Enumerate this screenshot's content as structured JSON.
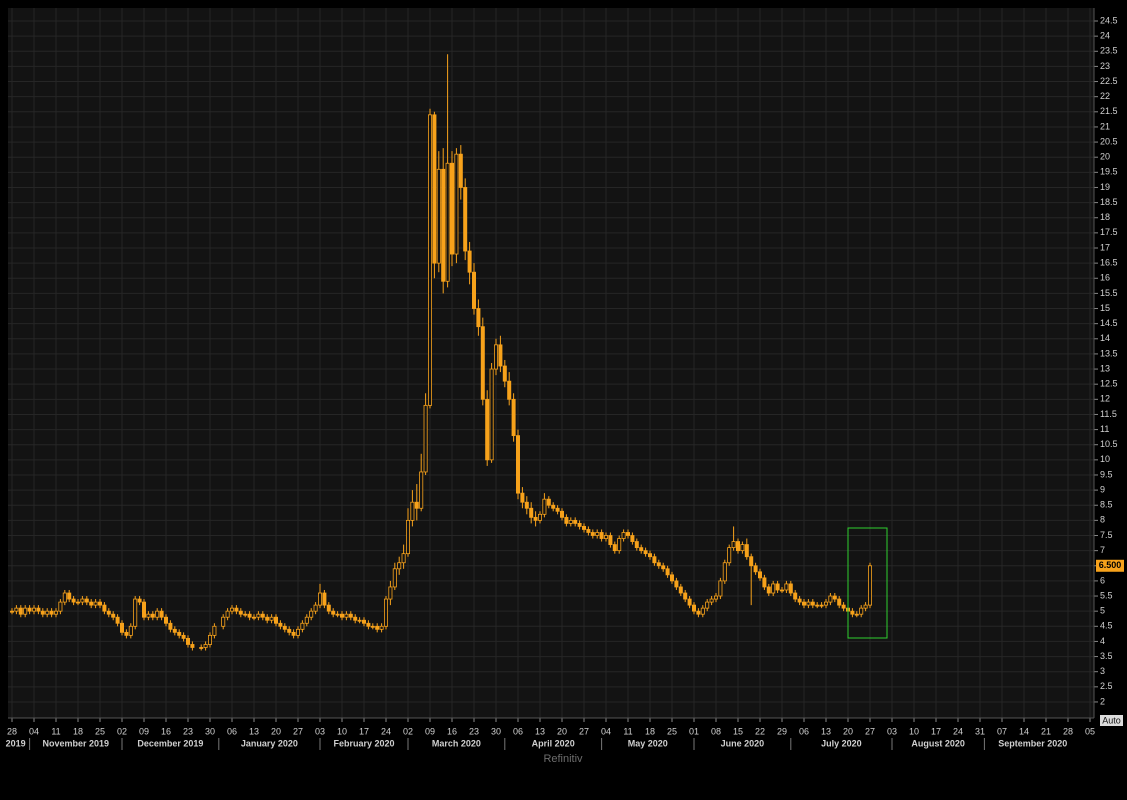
{
  "chart_data": {
    "type": "candlestick",
    "x": [
      "2019-10-28",
      "2019-10-29",
      "2019-10-30",
      "2019-10-31",
      "2019-11-01",
      "2019-11-04",
      "2019-11-05",
      "2019-11-06",
      "2019-11-07",
      "2019-11-08",
      "2019-11-11",
      "2019-11-12",
      "2019-11-13",
      "2019-11-14",
      "2019-11-15",
      "2019-11-18",
      "2019-11-19",
      "2019-11-20",
      "2019-11-21",
      "2019-11-22",
      "2019-11-25",
      "2019-11-26",
      "2019-11-27",
      "2019-11-28",
      "2019-11-29",
      "2019-12-02",
      "2019-12-03",
      "2019-12-04",
      "2019-12-05",
      "2019-12-06",
      "2019-12-09",
      "2019-12-10",
      "2019-12-11",
      "2019-12-12",
      "2019-12-13",
      "2019-12-16",
      "2019-12-17",
      "2019-12-18",
      "2019-12-19",
      "2019-12-20",
      "2019-12-23",
      "2019-12-24",
      "2019-12-26",
      "2019-12-27",
      "2019-12-30",
      "2019-12-31",
      "2020-01-02",
      "2020-01-03",
      "2020-01-06",
      "2020-01-07",
      "2020-01-08",
      "2020-01-09",
      "2020-01-10",
      "2020-01-13",
      "2020-01-14",
      "2020-01-15",
      "2020-01-16",
      "2020-01-17",
      "2020-01-20",
      "2020-01-21",
      "2020-01-22",
      "2020-01-23",
      "2020-01-24",
      "2020-01-27",
      "2020-01-28",
      "2020-01-29",
      "2020-01-30",
      "2020-01-31",
      "2020-02-03",
      "2020-02-04",
      "2020-02-05",
      "2020-02-06",
      "2020-02-07",
      "2020-02-10",
      "2020-02-11",
      "2020-02-12",
      "2020-02-13",
      "2020-02-14",
      "2020-02-17",
      "2020-02-18",
      "2020-02-19",
      "2020-02-20",
      "2020-02-21",
      "2020-02-24",
      "2020-02-25",
      "2020-02-26",
      "2020-02-27",
      "2020-02-28",
      "2020-03-02",
      "2020-03-03",
      "2020-03-04",
      "2020-03-05",
      "2020-03-06",
      "2020-03-09",
      "2020-03-10",
      "2020-03-11",
      "2020-03-12",
      "2020-03-13",
      "2020-03-16",
      "2020-03-17",
      "2020-03-18",
      "2020-03-19",
      "2020-03-20",
      "2020-03-23",
      "2020-03-24",
      "2020-03-25",
      "2020-03-26",
      "2020-03-27",
      "2020-03-30",
      "2020-03-31",
      "2020-04-01",
      "2020-04-02",
      "2020-04-03",
      "2020-04-06",
      "2020-04-07",
      "2020-04-08",
      "2020-04-09",
      "2020-04-10",
      "2020-04-13",
      "2020-04-14",
      "2020-04-15",
      "2020-04-16",
      "2020-04-17",
      "2020-04-20",
      "2020-04-21",
      "2020-04-22",
      "2020-04-23",
      "2020-04-24",
      "2020-04-27",
      "2020-04-28",
      "2020-04-29",
      "2020-04-30",
      "2020-05-01",
      "2020-05-04",
      "2020-05-05",
      "2020-05-06",
      "2020-05-07",
      "2020-05-08",
      "2020-05-11",
      "2020-05-12",
      "2020-05-13",
      "2020-05-14",
      "2020-05-15",
      "2020-05-18",
      "2020-05-19",
      "2020-05-20",
      "2020-05-21",
      "2020-05-22",
      "2020-05-25",
      "2020-05-26",
      "2020-05-27",
      "2020-05-28",
      "2020-05-29",
      "2020-06-01",
      "2020-06-02",
      "2020-06-03",
      "2020-06-04",
      "2020-06-05",
      "2020-06-08",
      "2020-06-09",
      "2020-06-10",
      "2020-06-11",
      "2020-06-12",
      "2020-06-15",
      "2020-06-16",
      "2020-06-17",
      "2020-06-18",
      "2020-06-19",
      "2020-06-22",
      "2020-06-23",
      "2020-06-24",
      "2020-06-25",
      "2020-06-26",
      "2020-06-29",
      "2020-06-30",
      "2020-07-01",
      "2020-07-02",
      "2020-07-03",
      "2020-07-06",
      "2020-07-07",
      "2020-07-08",
      "2020-07-09",
      "2020-07-10",
      "2020-07-13",
      "2020-07-14",
      "2020-07-15",
      "2020-07-16",
      "2020-07-17",
      "2020-07-20",
      "2020-07-21",
      "2020-07-22",
      "2020-07-23",
      "2020-07-24",
      "2020-07-27"
    ],
    "open": [
      5.0,
      5.0,
      5.1,
      4.9,
      5.1,
      5.0,
      5.1,
      5.0,
      4.9,
      5.0,
      4.9,
      5.0,
      5.3,
      5.6,
      5.4,
      5.3,
      5.3,
      5.4,
      5.3,
      5.2,
      5.3,
      5.2,
      5.0,
      4.9,
      4.8,
      4.6,
      4.3,
      4.2,
      4.5,
      5.4,
      5.3,
      4.8,
      4.9,
      4.8,
      5.0,
      4.8,
      4.6,
      4.4,
      4.3,
      4.2,
      4.1,
      3.9,
      3.8,
      3.8,
      3.9,
      4.2,
      4.5,
      4.8,
      5.0,
      5.1,
      5.0,
      4.9,
      4.9,
      4.8,
      4.8,
      4.9,
      4.8,
      4.7,
      4.8,
      4.6,
      4.5,
      4.4,
      4.3,
      4.2,
      4.4,
      4.6,
      4.8,
      5.0,
      5.2,
      5.6,
      5.2,
      5.0,
      4.9,
      4.9,
      4.8,
      4.9,
      4.8,
      4.7,
      4.7,
      4.6,
      4.5,
      4.5,
      4.4,
      4.5,
      5.4,
      5.8,
      6.4,
      6.6,
      6.9,
      8.0,
      8.6,
      8.4,
      9.6,
      11.8,
      21.4,
      16.5,
      19.6,
      15.9,
      19.8,
      16.8,
      20.1,
      19.0,
      16.9,
      16.2,
      15.0,
      14.4,
      12.0,
      10.0,
      13.0,
      13.8,
      13.1,
      12.6,
      12.0,
      10.8,
      8.9,
      8.6,
      8.4,
      8.1,
      8.0,
      8.2,
      8.7,
      8.5,
      8.4,
      8.3,
      8.1,
      7.9,
      8.0,
      7.9,
      7.8,
      7.7,
      7.6,
      7.5,
      7.6,
      7.4,
      7.5,
      7.2,
      7.0,
      7.4,
      7.6,
      7.5,
      7.3,
      7.1,
      7.0,
      6.9,
      6.8,
      6.6,
      6.5,
      6.4,
      6.2,
      6.0,
      5.8,
      5.6,
      5.4,
      5.2,
      5.0,
      4.9,
      5.1,
      5.3,
      5.4,
      5.5,
      6.0,
      6.6,
      7.1,
      7.3,
      7.0,
      7.2,
      6.8,
      6.5,
      6.3,
      6.1,
      5.8,
      5.6,
      5.9,
      5.7,
      5.7,
      5.9,
      5.6,
      5.4,
      5.3,
      5.2,
      5.3,
      5.2,
      5.2,
      5.2,
      5.3,
      5.5,
      5.4,
      5.2,
      5.1,
      5.0,
      4.9,
      4.9,
      5.1,
      5.2
    ],
    "high": [
      5.1,
      5.2,
      5.2,
      5.2,
      5.2,
      5.2,
      5.2,
      5.1,
      5.1,
      5.1,
      5.1,
      5.4,
      5.7,
      5.7,
      5.5,
      5.4,
      5.5,
      5.5,
      5.4,
      5.4,
      5.4,
      5.3,
      5.1,
      5.0,
      4.9,
      4.7,
      4.4,
      4.6,
      5.5,
      5.5,
      5.4,
      5.0,
      5.0,
      5.1,
      5.1,
      4.9,
      4.7,
      4.5,
      4.4,
      4.3,
      4.2,
      4.0,
      3.9,
      4.0,
      4.3,
      4.6,
      4.9,
      5.1,
      5.2,
      5.2,
      5.1,
      5.0,
      5.0,
      4.9,
      5.0,
      5.0,
      4.9,
      4.9,
      4.9,
      4.7,
      4.6,
      4.5,
      4.4,
      4.5,
      4.7,
      4.9,
      5.1,
      5.3,
      5.9,
      5.7,
      5.3,
      5.1,
      5.0,
      5.0,
      5.0,
      5.0,
      4.9,
      4.8,
      4.8,
      4.7,
      4.6,
      4.6,
      4.6,
      5.5,
      6.0,
      6.6,
      6.8,
      7.2,
      8.4,
      9.0,
      9.2,
      10.2,
      12.2,
      21.6,
      21.5,
      20.2,
      20.3,
      23.4,
      20.2,
      20.3,
      20.4,
      19.3,
      17.2,
      16.5,
      15.3,
      14.7,
      12.3,
      13.2,
      14.0,
      14.1,
      13.3,
      12.9,
      12.2,
      11.0,
      9.1,
      8.8,
      8.6,
      8.3,
      8.3,
      8.9,
      8.8,
      8.6,
      8.5,
      8.4,
      8.2,
      8.1,
      8.1,
      8.0,
      7.9,
      7.8,
      7.7,
      7.7,
      7.7,
      7.6,
      7.6,
      7.3,
      7.5,
      7.7,
      7.7,
      7.6,
      7.4,
      7.2,
      7.1,
      7.0,
      6.9,
      6.7,
      6.6,
      6.5,
      6.3,
      6.1,
      5.9,
      5.7,
      5.5,
      5.3,
      5.1,
      5.2,
      5.4,
      5.5,
      5.6,
      6.1,
      6.7,
      7.2,
      7.8,
      7.4,
      7.3,
      7.4,
      6.9,
      6.6,
      6.4,
      6.2,
      5.9,
      6.0,
      6.0,
      5.8,
      6.0,
      6.0,
      5.7,
      5.5,
      5.4,
      5.4,
      5.4,
      5.3,
      5.3,
      5.4,
      5.6,
      5.6,
      5.5,
      5.3,
      5.2,
      5.1,
      5.0,
      5.2,
      5.3,
      6.6
    ],
    "low": [
      4.9,
      4.9,
      4.8,
      4.8,
      4.9,
      4.9,
      4.9,
      4.8,
      4.8,
      4.8,
      4.8,
      4.9,
      5.2,
      5.3,
      5.2,
      5.2,
      5.2,
      5.2,
      5.1,
      5.1,
      5.1,
      4.9,
      4.8,
      4.7,
      4.5,
      4.2,
      4.1,
      4.1,
      4.4,
      5.2,
      4.7,
      4.7,
      4.7,
      4.7,
      4.7,
      4.5,
      4.3,
      4.2,
      4.1,
      4.0,
      3.8,
      3.7,
      3.7,
      3.7,
      3.8,
      4.1,
      4.4,
      4.7,
      4.9,
      4.9,
      4.8,
      4.8,
      4.7,
      4.7,
      4.7,
      4.7,
      4.6,
      4.6,
      4.5,
      4.4,
      4.3,
      4.2,
      4.1,
      4.1,
      4.3,
      4.5,
      4.7,
      4.9,
      5.1,
      5.1,
      4.9,
      4.8,
      4.8,
      4.7,
      4.7,
      4.7,
      4.6,
      4.6,
      4.5,
      4.4,
      4.4,
      4.3,
      4.3,
      4.4,
      5.2,
      5.7,
      6.2,
      6.4,
      6.8,
      7.8,
      8.0,
      8.3,
      9.5,
      11.7,
      16.0,
      16.2,
      15.5,
      15.7,
      16.4,
      16.5,
      18.6,
      16.6,
      15.8,
      14.8,
      14.1,
      11.8,
      9.8,
      9.9,
      12.8,
      12.9,
      12.4,
      11.8,
      10.6,
      8.7,
      8.4,
      8.2,
      7.9,
      7.8,
      7.9,
      8.1,
      8.4,
      8.3,
      8.2,
      8.0,
      7.8,
      7.8,
      7.8,
      7.7,
      7.6,
      7.5,
      7.4,
      7.4,
      7.3,
      7.3,
      7.1,
      6.9,
      6.9,
      7.3,
      7.4,
      7.2,
      7.0,
      6.9,
      6.8,
      6.7,
      6.5,
      6.4,
      6.3,
      6.1,
      5.9,
      5.7,
      5.5,
      5.3,
      5.1,
      4.9,
      4.8,
      4.8,
      5.0,
      5.2,
      5.3,
      5.4,
      5.9,
      6.5,
      7.0,
      6.9,
      6.9,
      6.7,
      5.2,
      6.2,
      6.0,
      5.7,
      5.5,
      5.5,
      5.6,
      5.6,
      5.6,
      5.5,
      5.3,
      5.2,
      5.1,
      5.1,
      5.1,
      5.1,
      5.1,
      5.1,
      5.2,
      5.3,
      5.1,
      5.0,
      4.9,
      4.8,
      4.8,
      4.8,
      5.0,
      5.1
    ],
    "close": [
      5.0,
      5.1,
      4.9,
      5.1,
      5.0,
      5.1,
      5.0,
      4.9,
      5.0,
      4.9,
      5.0,
      5.3,
      5.6,
      5.4,
      5.3,
      5.3,
      5.4,
      5.3,
      5.2,
      5.3,
      5.2,
      5.0,
      4.9,
      4.8,
      4.6,
      4.3,
      4.2,
      4.5,
      5.4,
      5.3,
      4.8,
      4.9,
      4.8,
      5.0,
      4.8,
      4.6,
      4.4,
      4.3,
      4.2,
      4.1,
      3.9,
      3.8,
      3.8,
      3.9,
      4.2,
      4.5,
      4.8,
      5.0,
      5.1,
      5.0,
      4.9,
      4.9,
      4.8,
      4.8,
      4.9,
      4.8,
      4.7,
      4.8,
      4.6,
      4.5,
      4.4,
      4.3,
      4.2,
      4.4,
      4.6,
      4.8,
      5.0,
      5.2,
      5.6,
      5.2,
      5.0,
      4.9,
      4.9,
      4.8,
      4.9,
      4.8,
      4.7,
      4.7,
      4.6,
      4.5,
      4.5,
      4.4,
      4.5,
      5.4,
      5.8,
      6.4,
      6.6,
      6.9,
      8.0,
      8.6,
      8.4,
      9.6,
      11.8,
      21.4,
      16.5,
      19.6,
      15.9,
      19.8,
      16.8,
      20.1,
      19.0,
      16.9,
      16.2,
      15.0,
      14.4,
      12.0,
      10.0,
      13.0,
      13.8,
      13.1,
      12.6,
      12.0,
      10.8,
      8.9,
      8.6,
      8.4,
      8.1,
      8.0,
      8.2,
      8.7,
      8.5,
      8.4,
      8.3,
      8.1,
      7.9,
      8.0,
      7.9,
      7.8,
      7.7,
      7.6,
      7.5,
      7.6,
      7.4,
      7.5,
      7.2,
      7.0,
      7.4,
      7.6,
      7.5,
      7.3,
      7.1,
      7.0,
      6.9,
      6.8,
      6.6,
      6.5,
      6.4,
      6.2,
      6.0,
      5.8,
      5.6,
      5.4,
      5.2,
      5.0,
      4.9,
      5.1,
      5.3,
      5.4,
      5.5,
      6.0,
      6.6,
      7.1,
      7.3,
      7.0,
      7.2,
      6.8,
      6.5,
      6.3,
      6.1,
      5.8,
      5.6,
      5.9,
      5.7,
      5.7,
      5.9,
      5.6,
      5.4,
      5.3,
      5.2,
      5.3,
      5.2,
      5.2,
      5.2,
      5.3,
      5.5,
      5.4,
      5.2,
      5.1,
      5.0,
      4.9,
      4.9,
      5.1,
      5.2,
      6.5
    ],
    "color": "#f7a21b",
    "ylim": [
      1.47,
      24.93
    ],
    "yticks": [
      2,
      2.5,
      3,
      3.5,
      4,
      4.5,
      5,
      5.5,
      6,
      6.5,
      7,
      7.5,
      8,
      8.5,
      9,
      9.5,
      10,
      10.5,
      11,
      11.5,
      12,
      12.5,
      13,
      13.5,
      14,
      14.5,
      15,
      15.5,
      16,
      16.5,
      17,
      17.5,
      18,
      18.5,
      19,
      19.5,
      20,
      20.5,
      21,
      21.5,
      22,
      22.5,
      23,
      23.5,
      24,
      24.5
    ],
    "xticks": [
      {
        "value": "2019-10-28",
        "label": "28"
      },
      {
        "value": "2019-11-04",
        "label": "04"
      },
      {
        "value": "2019-11-11",
        "label": "11"
      },
      {
        "value": "2019-11-18",
        "label": "18"
      },
      {
        "value": "2019-11-25",
        "label": "25"
      },
      {
        "value": "2019-12-02",
        "label": "02"
      },
      {
        "value": "2019-12-09",
        "label": "09"
      },
      {
        "value": "2019-12-16",
        "label": "16"
      },
      {
        "value": "2019-12-23",
        "label": "23"
      },
      {
        "value": "2019-12-30",
        "label": "30"
      },
      {
        "value": "2020-01-06",
        "label": "06"
      },
      {
        "value": "2020-01-13",
        "label": "13"
      },
      {
        "value": "2020-01-20",
        "label": "20"
      },
      {
        "value": "2020-01-27",
        "label": "27"
      },
      {
        "value": "2020-02-03",
        "label": "03"
      },
      {
        "value": "2020-02-10",
        "label": "10"
      },
      {
        "value": "2020-02-17",
        "label": "17"
      },
      {
        "value": "2020-02-24",
        "label": "24"
      },
      {
        "value": "2020-03-02",
        "label": "02"
      },
      {
        "value": "2020-03-09",
        "label": "09"
      },
      {
        "value": "2020-03-16",
        "label": "16"
      },
      {
        "value": "2020-03-23",
        "label": "23"
      },
      {
        "value": "2020-03-30",
        "label": "30"
      },
      {
        "value": "2020-04-06",
        "label": "06"
      },
      {
        "value": "2020-04-13",
        "label": "13"
      },
      {
        "value": "2020-04-20",
        "label": "20"
      },
      {
        "value": "2020-04-27",
        "label": "27"
      },
      {
        "value": "2020-05-04",
        "label": "04"
      },
      {
        "value": "2020-05-11",
        "label": "11"
      },
      {
        "value": "2020-05-18",
        "label": "18"
      },
      {
        "value": "2020-05-25",
        "label": "25"
      },
      {
        "value": "2020-06-01",
        "label": "01"
      },
      {
        "value": "2020-06-08",
        "label": "08"
      },
      {
        "value": "2020-06-15",
        "label": "15"
      },
      {
        "value": "2020-06-22",
        "label": "22"
      },
      {
        "value": "2020-06-29",
        "label": "29"
      },
      {
        "value": "2020-07-06",
        "label": "06"
      },
      {
        "value": "2020-07-13",
        "label": "13"
      },
      {
        "value": "2020-07-20",
        "label": "20"
      },
      {
        "value": "2020-07-27",
        "label": "27"
      },
      {
        "value": "2020-08-03",
        "label": "03"
      },
      {
        "value": "2020-08-10",
        "label": "10"
      },
      {
        "value": "2020-08-17",
        "label": "17"
      },
      {
        "value": "2020-08-24",
        "label": "24"
      },
      {
        "value": "2020-08-31",
        "label": "31"
      },
      {
        "value": "2020-09-07",
        "label": "07"
      },
      {
        "value": "2020-09-14",
        "label": "14"
      },
      {
        "value": "2020-09-21",
        "label": "21"
      },
      {
        "value": "2020-09-28",
        "label": "28"
      },
      {
        "value": "2020-10-05",
        "label": "05"
      }
    ],
    "months": [
      {
        "value": "2019-10-01",
        "label": "2019"
      },
      {
        "value": "2019-11-01",
        "label": "November 2019"
      },
      {
        "value": "2019-12-01",
        "label": "December 2019"
      },
      {
        "value": "2020-01-01",
        "label": "January 2020"
      },
      {
        "value": "2020-02-01",
        "label": "February 2020"
      },
      {
        "value": "2020-03-01",
        "label": "March 2020"
      },
      {
        "value": "2020-04-01",
        "label": "April 2020"
      },
      {
        "value": "2020-05-01",
        "label": "May 2020"
      },
      {
        "value": "2020-06-01",
        "label": "June 2020"
      },
      {
        "value": "2020-07-01",
        "label": "July 2020"
      },
      {
        "value": "2020-08-01",
        "label": "August 2020"
      },
      {
        "value": "2020-09-01",
        "label": "September 2020"
      }
    ],
    "grid": true,
    "last_price": {
      "value": 6.5,
      "label": "6.500"
    }
  },
  "controls": {
    "auto": "Auto"
  },
  "footer": "Refinitiv"
}
